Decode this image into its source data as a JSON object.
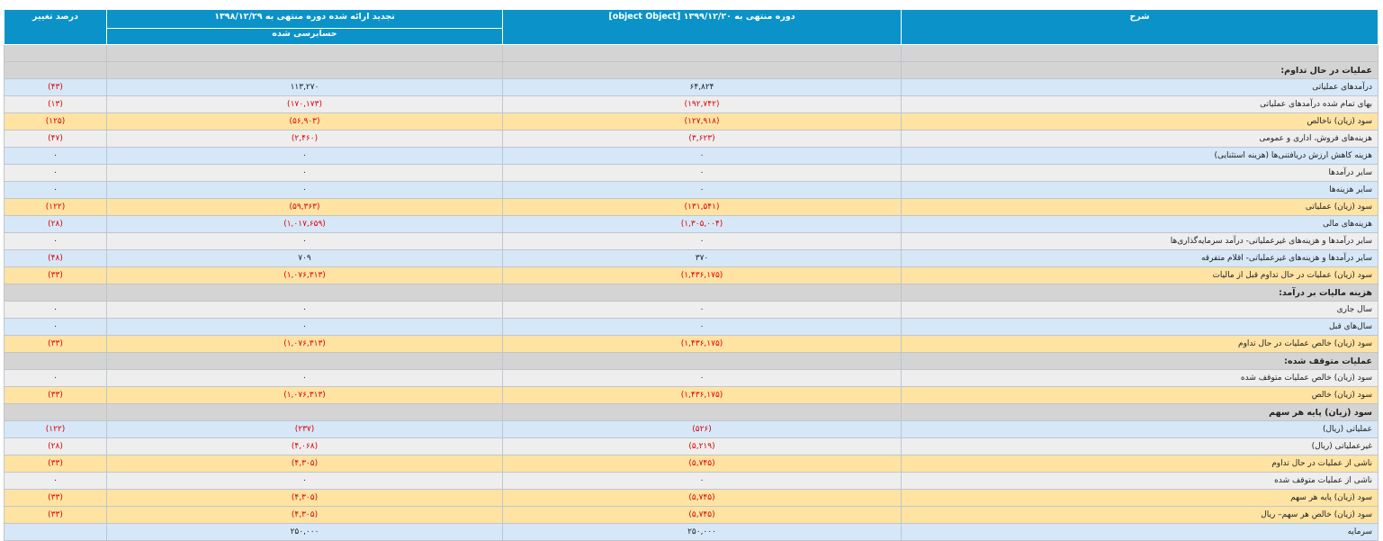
{
  "header": {
    "col_desc": "شرح",
    "col_current": "دوره منتهی به ۱۳۹۹/۱۲/۲۰ [object Object]",
    "col_previous": "تجدید ارائه شده دوره منتهی به ۱۳۹۸/۱۲/۲۹",
    "col_previous_sub": "حسابرسی شده",
    "col_pct": "درصد تغییر"
  },
  "rows": [
    {
      "type": "section",
      "desc": ""
    },
    {
      "type": "section",
      "desc": "عملیات در حال تداوم:"
    },
    {
      "type": "blue",
      "desc": "درآمدهای عملیاتی",
      "cur": "۶۴,۸۲۴",
      "prev": "۱۱۳,۲۷۰",
      "pct": "(۴۳)",
      "cur_neg": false,
      "prev_neg": false,
      "pct_neg": true
    },
    {
      "type": "gray",
      "desc": "بهای تمام شده درآمدهای عملیاتی",
      "cur": "(۱۹۲,۷۴۲)",
      "prev": "(۱۷۰,۱۷۳)",
      "pct": "(۱۳)",
      "cur_neg": true,
      "prev_neg": true,
      "pct_neg": true
    },
    {
      "type": "yellow",
      "desc": "سود (زیان) ناخالص",
      "cur": "(۱۲۷,۹۱۸)",
      "prev": "(۵۶,۹۰۳)",
      "pct": "(۱۲۵)",
      "cur_neg": true,
      "prev_neg": true,
      "pct_neg": true
    },
    {
      "type": "gray",
      "desc": "هزینه‌های فروش، اداری و عمومی",
      "cur": "(۳,۶۲۳)",
      "prev": "(۲,۴۶۰)",
      "pct": "(۴۷)",
      "cur_neg": true,
      "prev_neg": true,
      "pct_neg": true
    },
    {
      "type": "blue",
      "desc": "هزینه کاهش ارزش دریافتنی‌ها (هزینه استثنایی)",
      "cur": "۰",
      "prev": "۰",
      "pct": "۰",
      "cur_neg": false,
      "prev_neg": false,
      "pct_neg": false
    },
    {
      "type": "gray",
      "desc": "سایر درآمدها",
      "cur": "۰",
      "prev": "۰",
      "pct": "۰",
      "cur_neg": false,
      "prev_neg": false,
      "pct_neg": false
    },
    {
      "type": "blue",
      "desc": "سایر هزینه‌ها",
      "cur": "۰",
      "prev": "۰",
      "pct": "۰",
      "cur_neg": false,
      "prev_neg": false,
      "pct_neg": false
    },
    {
      "type": "yellow",
      "desc": "سود (زیان) عملیاتی",
      "cur": "(۱۳۱,۵۴۱)",
      "prev": "(۵۹,۳۶۳)",
      "pct": "(۱۲۲)",
      "cur_neg": true,
      "prev_neg": true,
      "pct_neg": true
    },
    {
      "type": "blue",
      "desc": "هزینه‌های مالی",
      "cur": "(۱,۳۰۵,۰۰۴)",
      "prev": "(۱,۰۱۷,۶۵۹)",
      "pct": "(۲۸)",
      "cur_neg": true,
      "prev_neg": true,
      "pct_neg": true
    },
    {
      "type": "gray",
      "desc": "سایر درآمدها و هزینه‌های غیرعملیاتی- درآمد سرمایه‌گذاری‌ها",
      "cur": "۰",
      "prev": "۰",
      "pct": "۰",
      "cur_neg": false,
      "prev_neg": false,
      "pct_neg": false
    },
    {
      "type": "blue",
      "desc": "سایر درآمدها و هزینه‌های غیرعملیاتی- اقلام متفرقه",
      "cur": "۳۷۰",
      "prev": "۷۰۹",
      "pct": "(۴۸)",
      "cur_neg": false,
      "prev_neg": false,
      "pct_neg": true
    },
    {
      "type": "yellow",
      "desc": "سود (زیان) عملیات در حال تداوم قبل از مالیات",
      "cur": "(۱,۴۳۶,۱۷۵)",
      "prev": "(۱,۰۷۶,۳۱۳)",
      "pct": "(۳۳)",
      "cur_neg": true,
      "prev_neg": true,
      "pct_neg": true
    },
    {
      "type": "section",
      "desc": "هزینه مالیات بر درآمد:"
    },
    {
      "type": "gray",
      "desc": "سال جاری",
      "cur": "۰",
      "prev": "۰",
      "pct": "۰",
      "cur_neg": false,
      "prev_neg": false,
      "pct_neg": false
    },
    {
      "type": "blue",
      "desc": "سال‌های قبل",
      "cur": "۰",
      "prev": "۰",
      "pct": "۰",
      "cur_neg": false,
      "prev_neg": false,
      "pct_neg": false
    },
    {
      "type": "yellow",
      "desc": "سود (زیان) خالص عملیات در حال تداوم",
      "cur": "(۱,۴۳۶,۱۷۵)",
      "prev": "(۱,۰۷۶,۳۱۳)",
      "pct": "(۳۳)",
      "cur_neg": true,
      "prev_neg": true,
      "pct_neg": true
    },
    {
      "type": "section",
      "desc": "عملیات متوقف شده:"
    },
    {
      "type": "gray",
      "desc": "سود (زیان) خالص عملیات متوقف شده",
      "cur": "۰",
      "prev": "۰",
      "pct": "۰",
      "cur_neg": false,
      "prev_neg": false,
      "pct_neg": false
    },
    {
      "type": "yellow",
      "desc": "سود (زیان) خالص",
      "cur": "(۱,۴۳۶,۱۷۵)",
      "prev": "(۱,۰۷۶,۳۱۳)",
      "pct": "(۳۳)",
      "cur_neg": true,
      "prev_neg": true,
      "pct_neg": true
    },
    {
      "type": "section",
      "desc": "سود (زیان) پایه هر سهم"
    },
    {
      "type": "blue",
      "desc": "عملیاتی (ریال)",
      "cur": "(۵۲۶)",
      "prev": "(۲۳۷)",
      "pct": "(۱۲۲)",
      "cur_neg": true,
      "prev_neg": true,
      "pct_neg": true
    },
    {
      "type": "gray",
      "desc": "غیرعملیاتی (ریال)",
      "cur": "(۵,۲۱۹)",
      "prev": "(۴,۰۶۸)",
      "pct": "(۲۸)",
      "cur_neg": true,
      "prev_neg": true,
      "pct_neg": true
    },
    {
      "type": "yellow",
      "desc": "ناشی از عملیات در حال تداوم",
      "cur": "(۵,۷۴۵)",
      "prev": "(۴,۳۰۵)",
      "pct": "(۳۳)",
      "cur_neg": true,
      "prev_neg": true,
      "pct_neg": true
    },
    {
      "type": "gray",
      "desc": "ناشی از عملیات متوقف شده",
      "cur": "۰",
      "prev": "۰",
      "pct": "۰",
      "cur_neg": false,
      "prev_neg": false,
      "pct_neg": false
    },
    {
      "type": "yellow",
      "desc": "سود (زیان) پایه هر سهم",
      "cur": "(۵,۷۴۵)",
      "prev": "(۴,۳۰۵)",
      "pct": "(۳۳)",
      "cur_neg": true,
      "prev_neg": true,
      "pct_neg": true
    },
    {
      "type": "yellow",
      "desc": "سود (زیان) خالص هر سهم– ریال",
      "cur": "(۵,۷۴۵)",
      "prev": "(۴,۳۰۵)",
      "pct": "(۳۳)",
      "cur_neg": true,
      "prev_neg": true,
      "pct_neg": true
    },
    {
      "type": "blue",
      "desc": "سرمایه",
      "cur": "۲۵۰,۰۰۰",
      "prev": "۲۵۰,۰۰۰",
      "pct": "",
      "cur_neg": false,
      "prev_neg": false,
      "pct_neg": false
    }
  ],
  "colors": {
    "header_bg": "#0b93c9",
    "row_blue": "#d6e7f8",
    "row_gray": "#eeeeee",
    "row_yellow": "#ffe3a3",
    "row_section": "#d4d4d4",
    "negative_text": "#e00000"
  }
}
